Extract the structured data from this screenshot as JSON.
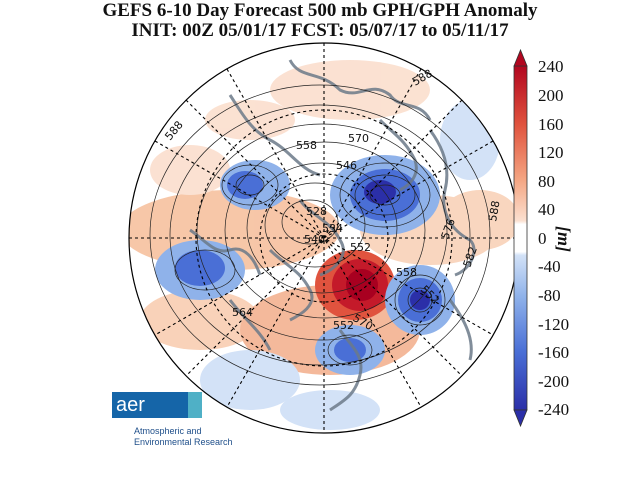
{
  "title": {
    "line1": "GEFS 6-10 Day Forecast 500 mb GPH/GPH Anomaly",
    "line2": "INIT: 00Z 05/01/17   FCST: 05/07/17 to 05/11/17"
  },
  "colorbar": {
    "ticks": [
      "240",
      "200",
      "160",
      "120",
      "80",
      "40",
      "0",
      "-40",
      "-80",
      "-120",
      "-160",
      "-200",
      "-240"
    ],
    "unit": "[m]",
    "range": [
      -240,
      240
    ],
    "colors": {
      "max": "#b2061f",
      "high": "#e0533e",
      "mid_high": "#f4a582",
      "low_pos": "#fbe0d0",
      "zero": "#ffffff",
      "low_neg": "#d3e2f7",
      "mid_low": "#8fb2ea",
      "low": "#4a6fd6",
      "min": "#2b2fa8"
    }
  },
  "contour_labels": [
    "588",
    "588",
    "570",
    "558",
    "546",
    "528",
    "534",
    "540",
    "552",
    "576",
    "582",
    "588",
    "558",
    "552",
    "564",
    "570",
    "552"
  ],
  "logo": {
    "text": "aer",
    "line1": "Atmospheric and",
    "line2": "Environmental Research"
  }
}
